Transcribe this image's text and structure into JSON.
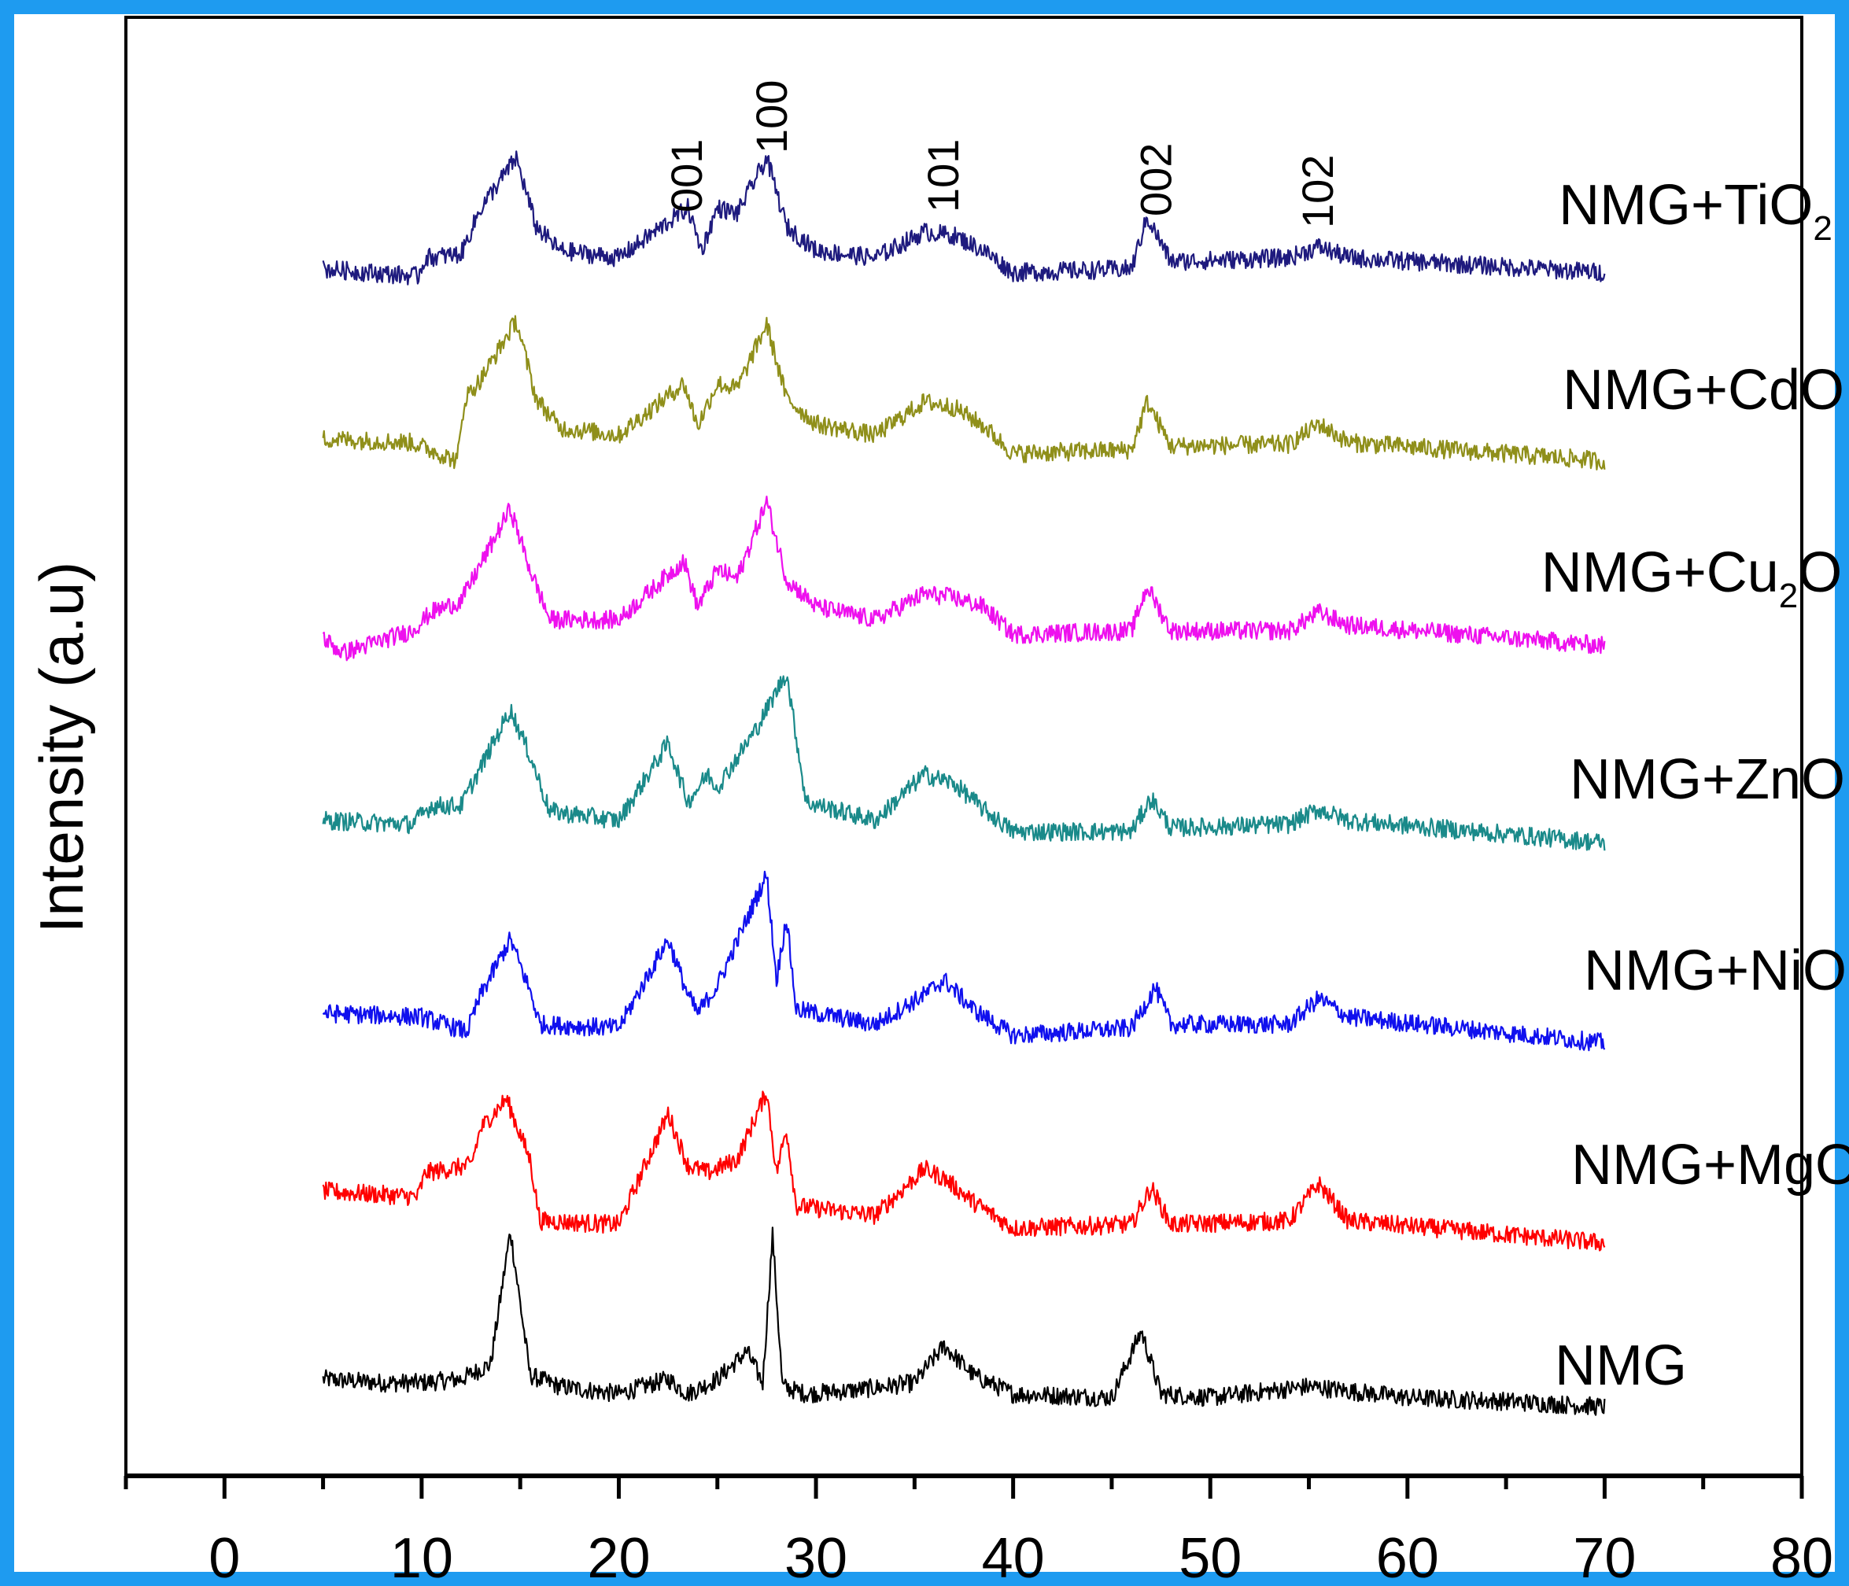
{
  "chart_data": {
    "type": "line",
    "title": "",
    "xlabel": "",
    "ylabel": "Intensity (a.u)",
    "xlim": [
      -5,
      80
    ],
    "x_ticks": [
      0,
      10,
      20,
      30,
      40,
      50,
      60,
      70,
      80
    ],
    "grid": false,
    "legend": "inline labels at right of each trace",
    "peak_labels": [
      {
        "text": "001",
        "x": 23.5
      },
      {
        "text": "100",
        "x": 27.8
      },
      {
        "text": "101",
        "x": 36.5
      },
      {
        "text": "002",
        "x": 47.3
      },
      {
        "text": "102",
        "x": 55.5
      }
    ],
    "series": [
      {
        "name": "NMG",
        "label_main": "NMG",
        "label_sub": "",
        "label_suffix": "",
        "color": "#000000",
        "x": [
          5,
          8,
          10,
          12,
          13.5,
          14.5,
          15.5,
          17,
          20,
          22.5,
          23.5,
          25,
          26.5,
          27.3,
          27.8,
          28.3,
          29.5,
          32,
          35,
          36.5,
          38,
          40,
          45,
          46.5,
          47.5,
          50,
          55,
          60,
          65,
          70
        ],
        "y": [
          0.2,
          0.18,
          0.18,
          0.2,
          0.28,
          1.0,
          0.22,
          0.16,
          0.12,
          0.2,
          0.12,
          0.2,
          0.35,
          0.18,
          0.98,
          0.16,
          0.12,
          0.14,
          0.18,
          0.38,
          0.22,
          0.12,
          0.1,
          0.46,
          0.12,
          0.1,
          0.16,
          0.1,
          0.08,
          0.05
        ]
      },
      {
        "name": "NMG+MgO",
        "label_main": "NMG+MgO",
        "label_sub": "",
        "label_suffix": "",
        "color": "#ff0000",
        "x": [
          5,
          9.8,
          10.2,
          12.5,
          13,
          14.3,
          15.5,
          16,
          20,
          22.5,
          23.5,
          24.5,
          26,
          27.5,
          28,
          28.5,
          29,
          33,
          35.5,
          36.5,
          38,
          40,
          46,
          47,
          48,
          54,
          55.5,
          57,
          70
        ],
        "y": [
          0.28,
          0.25,
          0.38,
          0.42,
          0.62,
          0.78,
          0.45,
          0.12,
          0.1,
          0.7,
          0.42,
          0.38,
          0.45,
          0.82,
          0.38,
          0.62,
          0.2,
          0.15,
          0.4,
          0.35,
          0.22,
          0.08,
          0.1,
          0.3,
          0.1,
          0.12,
          0.32,
          0.12,
          0.0
        ]
      },
      {
        "name": "NMG+NiO",
        "label_main": "NMG+NiO",
        "label_sub": "",
        "label_suffix": "",
        "color": "#1010ee",
        "x": [
          5,
          10,
          12.3,
          13,
          14.5,
          15.5,
          16,
          20,
          22.5,
          23.5,
          24,
          25,
          27.5,
          28,
          28.5,
          29,
          33,
          35.5,
          36.5,
          38,
          40,
          46,
          47.2,
          48,
          54,
          55.5,
          57,
          70
        ],
        "y": [
          0.2,
          0.18,
          0.1,
          0.3,
          0.6,
          0.32,
          0.14,
          0.12,
          0.6,
          0.3,
          0.2,
          0.35,
          0.95,
          0.38,
          0.72,
          0.22,
          0.14,
          0.3,
          0.38,
          0.22,
          0.08,
          0.12,
          0.34,
          0.14,
          0.14,
          0.28,
          0.18,
          0.04
        ]
      },
      {
        "name": "NMG+ZnO",
        "label_main": "NMG+ZnO",
        "label_sub": "",
        "label_suffix": "",
        "color": "#1a8a8a",
        "x": [
          5,
          9.5,
          10.5,
          12,
          14.5,
          15.5,
          16.5,
          20,
          22.5,
          23.5,
          24.5,
          25,
          27,
          28.5,
          29.5,
          33,
          35.5,
          37,
          38.5,
          40,
          46,
          47,
          48,
          54,
          55.5,
          57,
          70
        ],
        "y": [
          0.2,
          0.18,
          0.28,
          0.28,
          0.8,
          0.55,
          0.25,
          0.2,
          0.62,
          0.3,
          0.45,
          0.38,
          0.7,
          1.0,
          0.3,
          0.2,
          0.45,
          0.4,
          0.26,
          0.14,
          0.14,
          0.32,
          0.16,
          0.18,
          0.26,
          0.2,
          0.08
        ]
      },
      {
        "name": "NMG+Cu₂O",
        "label_main": "NMG+Cu",
        "label_sub": "2",
        "label_suffix": "O",
        "color": "#ee10ee",
        "x": [
          5,
          6,
          9.5,
          10.5,
          12,
          14.5,
          15.5,
          16.5,
          20,
          23.3,
          24,
          25,
          26,
          27.5,
          28.5,
          30,
          33,
          35.5,
          37,
          38.5,
          40,
          46,
          46.8,
          48,
          54,
          55.5,
          57,
          70
        ],
        "y": [
          0.08,
          0.0,
          0.12,
          0.22,
          0.28,
          0.78,
          0.45,
          0.18,
          0.18,
          0.5,
          0.25,
          0.45,
          0.4,
          0.82,
          0.4,
          0.25,
          0.18,
          0.32,
          0.3,
          0.25,
          0.1,
          0.12,
          0.36,
          0.12,
          0.12,
          0.22,
          0.15,
          0.04
        ]
      },
      {
        "name": "NMG+CdO",
        "label_main": "NMG+CdO",
        "label_sub": "",
        "label_suffix": "",
        "color": "#8f8f1a",
        "x": [
          5,
          9.5,
          11.8,
          12.2,
          13,
          14.8,
          15.8,
          17,
          20,
          23.3,
          24,
          25,
          26,
          27.5,
          28.5,
          30,
          33,
          35.5,
          37,
          38.5,
          40,
          46,
          46.8,
          48,
          54,
          55.5,
          57,
          70
        ],
        "y": [
          0.18,
          0.16,
          0.06,
          0.4,
          0.5,
          0.82,
          0.4,
          0.24,
          0.2,
          0.48,
          0.25,
          0.48,
          0.45,
          0.8,
          0.4,
          0.26,
          0.2,
          0.38,
          0.35,
          0.25,
          0.1,
          0.12,
          0.38,
          0.14,
          0.15,
          0.26,
          0.16,
          0.06
        ]
      },
      {
        "name": "NMG+TiO₂",
        "label_main": "NMG+TiO",
        "label_sub": "2",
        "label_suffix": "",
        "color": "#1e1a7e",
        "x": [
          5,
          9.8,
          10.2,
          12,
          13,
          14.8,
          15.8,
          17,
          20,
          23.5,
          24.2,
          25,
          26,
          27.5,
          28.5,
          30,
          33,
          35.5,
          37,
          38.5,
          40,
          46,
          46.8,
          48,
          54,
          55.5,
          57,
          70
        ],
        "y": [
          0.12,
          0.08,
          0.18,
          0.2,
          0.45,
          0.72,
          0.35,
          0.22,
          0.18,
          0.45,
          0.22,
          0.45,
          0.42,
          0.72,
          0.35,
          0.22,
          0.18,
          0.32,
          0.3,
          0.22,
          0.1,
          0.12,
          0.4,
          0.16,
          0.18,
          0.24,
          0.18,
          0.1
        ]
      }
    ]
  }
}
